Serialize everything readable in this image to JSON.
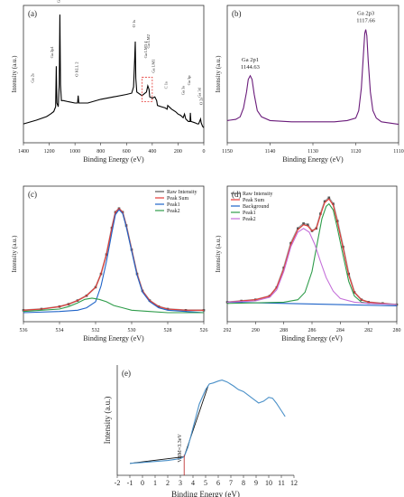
{
  "chart_data": [
    {
      "panel": "(a)",
      "type": "line",
      "xlabel": "Binding Energy (eV)",
      "ylabel": "Intensity (a.u.)",
      "xlim": [
        1400,
        0
      ],
      "xticks": [
        1400,
        1200,
        1000,
        800,
        600,
        400,
        200,
        0
      ],
      "ylim": [
        0,
        100
      ],
      "color": "#000000",
      "series": [
        {
          "x": [
            1400,
            1300,
            1220,
            1190,
            1165,
            1150,
            1145,
            1140,
            1130,
            1122,
            1117,
            1112,
            1105,
            1090,
            1050,
            1000,
            980,
            975,
            970,
            900,
            800,
            700,
            600,
            560,
            545,
            537,
            532,
            528,
            520,
            480,
            445,
            435,
            425,
            420,
            400,
            380,
            366,
            360,
            330,
            300,
            285,
            280,
            250,
            220,
            200,
            180,
            160,
            150,
            140,
            120,
            107,
            104,
            100,
            70,
            50,
            40,
            25,
            20,
            10,
            0
          ],
          "y": [
            8,
            11,
            14,
            16,
            18,
            22,
            55,
            25,
            22,
            40,
            97,
            40,
            27,
            27,
            26,
            25,
            25,
            31,
            25,
            25,
            28,
            30,
            32,
            33,
            38,
            60,
            75,
            45,
            34,
            31,
            34,
            39,
            36,
            30,
            29,
            30,
            27,
            23,
            22,
            21,
            20,
            23,
            20,
            18,
            16,
            15,
            13,
            16,
            12,
            10,
            10,
            17,
            10,
            9,
            8,
            8,
            12,
            9,
            6,
            5
          ]
        }
      ],
      "annotations": [
        "Ga 2s",
        "Ga 2p1",
        "Ga 2p3",
        "O KLL 2",
        "O 1s",
        "Ga LM3 4",
        "Ga LM2",
        "Ga LM1",
        "C 1s",
        "Ga 3s",
        "Ga 3p",
        "Ga 3d",
        "O 2s"
      ]
    },
    {
      "panel": "(b)",
      "type": "line",
      "xlabel": "Binding Energy (eV)",
      "ylabel": "Intensity (a.u.)",
      "xlim": [
        1150,
        1110
      ],
      "xticks": [
        1150,
        1140,
        1130,
        1120,
        1110
      ],
      "ylim": [
        0,
        100
      ],
      "color": "#6a1b7a",
      "peaks": [
        {
          "label": "Ga 2p1",
          "value": "1144.63",
          "x": 1144.63
        },
        {
          "label": "Ga 2p3",
          "value": "1117.66",
          "x": 1117.66
        }
      ],
      "series": [
        {
          "x": [
            1150,
            1148,
            1147,
            1146.2,
            1145.5,
            1145.1,
            1144.63,
            1144.2,
            1143.7,
            1143.0,
            1142,
            1140,
            1135,
            1130,
            1125,
            1122,
            1120,
            1119.3,
            1118.7,
            1118.2,
            1117.9,
            1117.66,
            1117.4,
            1117.1,
            1116.6,
            1116,
            1115.2,
            1114,
            1112,
            1110
          ],
          "y": [
            12,
            13,
            15,
            22,
            35,
            45,
            48,
            45,
            33,
            20,
            15,
            12,
            11,
            11,
            11,
            12,
            14,
            20,
            38,
            65,
            82,
            85,
            80,
            60,
            35,
            20,
            14,
            11,
            10,
            9
          ]
        }
      ]
    },
    {
      "panel": "(c)",
      "type": "line",
      "xlabel": "Binding Energy (eV)",
      "ylabel": "Intensity (a.u.)",
      "xlim": [
        536,
        526
      ],
      "xticks": [
        536,
        534,
        532,
        530,
        528,
        526
      ],
      "ylim": [
        0,
        100
      ],
      "legend": [
        "Raw Intensity",
        "Peak Sum",
        "Peak1",
        "Peak2"
      ],
      "legend_position": "top-right",
      "series": [
        {
          "name": "Raw Intensity",
          "color": "#555555",
          "x": [
            536,
            535,
            534,
            533.5,
            533,
            532.5,
            532,
            531.7,
            531.4,
            531.1,
            530.9,
            530.7,
            530.5,
            530.3,
            530.0,
            529.7,
            529.4,
            529.0,
            528.5,
            528,
            527,
            526
          ],
          "y": [
            2,
            3,
            5,
            7,
            10,
            14,
            21,
            32,
            48,
            70,
            83,
            86,
            83,
            72,
            52,
            32,
            18,
            10,
            5,
            3,
            2,
            2
          ]
        },
        {
          "name": "Peak Sum",
          "color": "#e53935",
          "x": [
            536,
            535,
            534,
            533.5,
            533,
            532.5,
            532,
            531.7,
            531.4,
            531.1,
            530.9,
            530.7,
            530.5,
            530.3,
            530.0,
            529.7,
            529.4,
            529.0,
            528.5,
            528,
            527,
            526
          ],
          "y": [
            2,
            3,
            5,
            7,
            10,
            14,
            21,
            32,
            48,
            70,
            83,
            86,
            83,
            72,
            52,
            32,
            18,
            10,
            5,
            3,
            2,
            2
          ]
        },
        {
          "name": "Peak1",
          "color": "#1e63c8",
          "x": [
            536,
            534,
            533,
            532.5,
            532,
            531.7,
            531.4,
            531.1,
            530.9,
            530.7,
            530.5,
            530.3,
            530.0,
            529.7,
            529.4,
            529.0,
            528.5,
            528,
            527,
            526
          ],
          "y": [
            0,
            1,
            2,
            4,
            9,
            22,
            42,
            66,
            81,
            85,
            82,
            71,
            51,
            31,
            17,
            9,
            4,
            2,
            1,
            0
          ]
        },
        {
          "name": "Peak2",
          "color": "#2e9c4a",
          "x": [
            536,
            535,
            534,
            533.5,
            533,
            532.6,
            532.2,
            531.8,
            531.4,
            531,
            530.5,
            530,
            529,
            528,
            527,
            526
          ],
          "y": [
            1,
            2,
            3,
            5,
            8,
            11,
            12,
            11,
            9,
            6,
            4,
            2,
            1,
            0,
            0,
            0
          ]
        }
      ]
    },
    {
      "panel": "(d)",
      "type": "line",
      "xlabel": "Binding Energy (eV)",
      "ylabel": "Intensity (a.u.)",
      "xlim": [
        292,
        280
      ],
      "xticks": [
        292,
        290,
        288,
        286,
        284,
        282,
        280
      ],
      "ylim": [
        0,
        100
      ],
      "legend": [
        "Raw Intensity",
        "Peak Sum",
        "Background",
        "Peak1",
        "Peak2"
      ],
      "legend_position": "top-left",
      "series": [
        {
          "name": "Raw Intensity",
          "color": "#555555",
          "x": [
            292,
            291,
            290,
            289,
            288.5,
            288,
            287.5,
            287,
            286.6,
            286.3,
            286,
            285.7,
            285.4,
            285.1,
            284.8,
            284.5,
            284.2,
            283.8,
            283.4,
            283,
            282.5,
            282,
            281,
            280
          ],
          "y": [
            10,
            11,
            12,
            15,
            22,
            38,
            58,
            70,
            74,
            73,
            68,
            70,
            82,
            92,
            95,
            90,
            76,
            55,
            33,
            18,
            12,
            10,
            9,
            8
          ]
        },
        {
          "name": "Peak Sum",
          "color": "#e53935",
          "x": [
            292,
            291,
            290,
            289,
            288.5,
            288,
            287.5,
            287,
            286.6,
            286.3,
            286,
            285.7,
            285.4,
            285.1,
            284.8,
            284.5,
            284.2,
            283.8,
            283.4,
            283,
            282.5,
            282,
            281,
            280
          ],
          "y": [
            10,
            11,
            12,
            15,
            22,
            37,
            57,
            69,
            73,
            72,
            68,
            70,
            81,
            91,
            94,
            89,
            75,
            54,
            32,
            18,
            12,
            10,
            9,
            8
          ]
        },
        {
          "name": "Background",
          "color": "#1e63c8",
          "x": [
            292,
            280
          ],
          "y": [
            10,
            7
          ]
        },
        {
          "name": "Peak1",
          "color": "#2e9c4a",
          "x": [
            292,
            288,
            287,
            286.5,
            286,
            285.6,
            285.3,
            285.0,
            284.8,
            284.5,
            284.2,
            283.8,
            283.4,
            283,
            282.5,
            282,
            280
          ],
          "y": [
            9,
            10,
            12,
            18,
            35,
            60,
            78,
            88,
            90,
            85,
            70,
            48,
            27,
            15,
            10,
            9,
            8
          ]
        },
        {
          "name": "Peak2",
          "color": "#c46fd9",
          "x": [
            292,
            290,
            289,
            288.5,
            288,
            287.5,
            287,
            286.6,
            286.2,
            285.8,
            285.4,
            285,
            284.5,
            284,
            283,
            282,
            280
          ],
          "y": [
            10,
            11,
            14,
            20,
            35,
            55,
            67,
            70,
            67,
            57,
            43,
            30,
            19,
            13,
            10,
            9,
            8
          ]
        }
      ]
    },
    {
      "panel": "(e)",
      "type": "line",
      "xlabel": "Binding Energy (eV)",
      "ylabel": "Intensity (a.u.)",
      "xlim": [
        -2,
        12
      ],
      "xticks": [
        -2,
        -1,
        0,
        1,
        2,
        3,
        4,
        5,
        6,
        7,
        8,
        9,
        10,
        11,
        12
      ],
      "ylim": [
        0,
        100
      ],
      "annotation": "VBM=3.3eV",
      "vbm": 3.3,
      "series": [
        {
          "color": "#4a90c8",
          "x": [
            -1,
            0,
            1,
            2,
            2.5,
            3.0,
            3.3,
            3.6,
            4.0,
            4.5,
            5.0,
            5.3,
            5.6,
            6.0,
            6.3,
            6.7,
            7.2,
            7.6,
            8.0,
            8.4,
            8.8,
            9.2,
            9.6,
            10.0,
            10.3,
            10.6,
            11.0,
            11.3
          ],
          "y": [
            3,
            4,
            5,
            6,
            7,
            8,
            10,
            20,
            40,
            65,
            80,
            86,
            87,
            89,
            90,
            88,
            84,
            80,
            78,
            74,
            70,
            66,
            68,
            72,
            71,
            66,
            58,
            52
          ]
        }
      ],
      "fit_lines": [
        {
          "x": [
            3.3,
            5.2
          ],
          "y": [
            10,
            84
          ]
        },
        {
          "x": [
            -1,
            3.3
          ],
          "y": [
            3,
            10
          ]
        }
      ]
    }
  ]
}
